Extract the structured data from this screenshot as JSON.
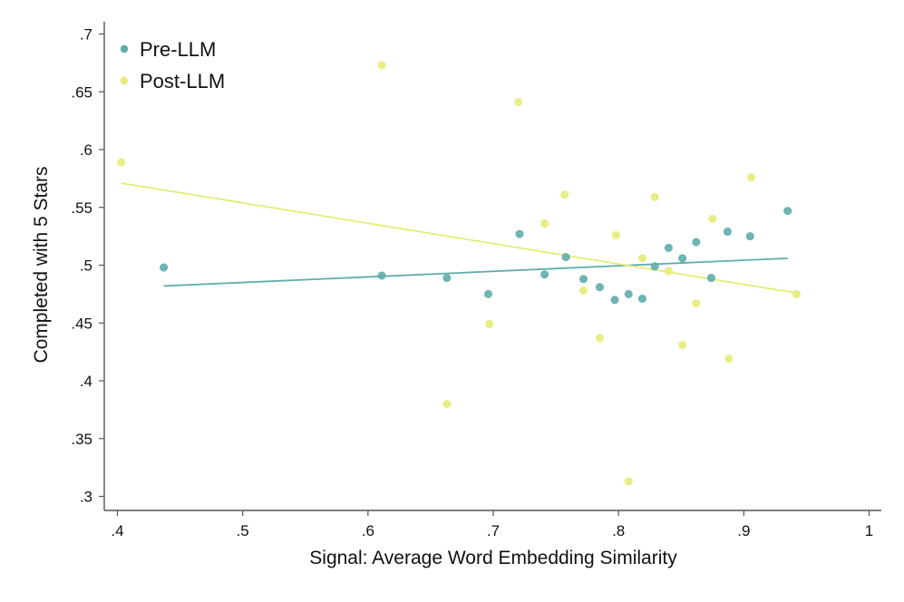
{
  "chart_data": {
    "type": "scatter",
    "xlabel": "Signal: Average Word Embedding Similarity",
    "ylabel": "Completed with 5 Stars",
    "xlim": [
      0.4,
      1.0
    ],
    "ylim": [
      0.3,
      0.7
    ],
    "x_ticks": [
      ".4",
      ".5",
      ".6",
      ".7",
      ".8",
      ".9",
      "1"
    ],
    "y_ticks": [
      ".3",
      ".35",
      ".4",
      ".45",
      ".5",
      ".55",
      ".6",
      ".65",
      ".7"
    ],
    "legend_position": "top-left",
    "series": [
      {
        "name": "Pre-LLM",
        "color": "#5fadab",
        "points": [
          [
            0.437,
            0.498
          ],
          [
            0.611,
            0.491
          ],
          [
            0.663,
            0.489
          ],
          [
            0.696,
            0.475
          ],
          [
            0.721,
            0.527
          ],
          [
            0.741,
            0.492
          ],
          [
            0.758,
            0.507
          ],
          [
            0.772,
            0.488
          ],
          [
            0.785,
            0.481
          ],
          [
            0.797,
            0.47
          ],
          [
            0.808,
            0.475
          ],
          [
            0.819,
            0.471
          ],
          [
            0.829,
            0.499
          ],
          [
            0.84,
            0.515
          ],
          [
            0.851,
            0.506
          ],
          [
            0.862,
            0.52
          ],
          [
            0.874,
            0.489
          ],
          [
            0.887,
            0.529
          ],
          [
            0.905,
            0.525
          ],
          [
            0.935,
            0.547
          ]
        ],
        "fit": {
          "x": [
            0.437,
            0.935
          ],
          "y": [
            0.482,
            0.506
          ]
        }
      },
      {
        "name": "Post-LLM",
        "color": "#e4ec78",
        "points": [
          [
            0.403,
            0.589
          ],
          [
            0.611,
            0.673
          ],
          [
            0.663,
            0.38
          ],
          [
            0.697,
            0.449
          ],
          [
            0.72,
            0.641
          ],
          [
            0.741,
            0.536
          ],
          [
            0.757,
            0.561
          ],
          [
            0.772,
            0.478
          ],
          [
            0.785,
            0.437
          ],
          [
            0.798,
            0.526
          ],
          [
            0.808,
            0.313
          ],
          [
            0.819,
            0.506
          ],
          [
            0.829,
            0.559
          ],
          [
            0.84,
            0.495
          ],
          [
            0.851,
            0.431
          ],
          [
            0.862,
            0.467
          ],
          [
            0.875,
            0.54
          ],
          [
            0.888,
            0.419
          ],
          [
            0.906,
            0.576
          ],
          [
            0.942,
            0.475
          ]
        ],
        "fit": {
          "x": [
            0.403,
            0.942
          ],
          "y": [
            0.571,
            0.476
          ]
        }
      }
    ]
  }
}
